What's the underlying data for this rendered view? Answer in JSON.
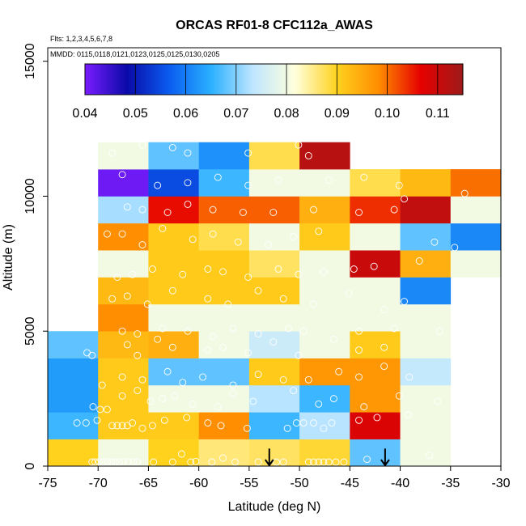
{
  "chart_data": {
    "type": "heatmap",
    "title": "ORCAS RF01-8 CFC112a_AWAS",
    "subtitle_flights": "Flts: 1,2,3,4,5,6,7,8",
    "subtitle_dates": "MMDD: 0115,0118,0121,0123,0125,0125,0130,0205",
    "xlabel": "Latitude (deg N)",
    "ylabel": "Altitude (m)",
    "xlim": [
      -75,
      -30
    ],
    "ylim": [
      0,
      15500
    ],
    "x_ticks": [
      -75,
      -70,
      -65,
      -60,
      -55,
      -50,
      -45,
      -40,
      -35,
      -30
    ],
    "x_tick_labels": [
      "-75",
      "-70",
      "-65",
      "-60",
      "-55",
      "-50",
      "-45",
      "-40",
      "-35",
      "-30"
    ],
    "y_ticks": [
      0,
      5000,
      10000,
      15000
    ],
    "y_tick_labels": [
      "0",
      "5000",
      "10000",
      "15000"
    ],
    "colorbar": {
      "min": 0.04,
      "max": 0.115,
      "ticks": [
        0.04,
        0.05,
        0.06,
        0.07,
        0.08,
        0.09,
        0.1,
        0.11
      ],
      "tick_labels": [
        "0.04",
        "0.05",
        "0.06",
        "0.07",
        "0.08",
        "0.09",
        "0.10",
        "0.11"
      ],
      "stops": [
        "#7a1cff",
        "#0a0aa8",
        "#0a5cf0",
        "#2ab0ff",
        "#bfe6ff",
        "#ffffdc",
        "#ffd21e",
        "#ff8c00",
        "#e60000",
        "#9e1a1a"
      ]
    },
    "lat_edges": [
      -75,
      -70,
      -65,
      -60,
      -55,
      -50,
      -45,
      -40,
      -35,
      -30
    ],
    "alt_edges": [
      0,
      1000,
      2000,
      3000,
      4000,
      5000,
      6000,
      7000,
      8000,
      9000,
      10000,
      11000,
      12000
    ],
    "cells_value_note": "rows bottom(0-1000 m) to top(11000-12000 m); columns lat bins -75..-30; null = no data",
    "cells": [
      [
        0.09,
        0.08,
        0.09,
        0.086,
        0.087,
        0.089,
        0.068,
        0.08,
        null
      ],
      [
        0.066,
        0.091,
        0.091,
        0.098,
        0.066,
        0.073,
        0.108,
        0.08,
        null
      ],
      [
        0.063,
        0.091,
        0.08,
        0.08,
        0.073,
        0.066,
        0.097,
        0.08,
        null
      ],
      [
        0.063,
        0.091,
        0.068,
        0.068,
        0.091,
        0.097,
        0.097,
        0.074,
        null
      ],
      [
        0.068,
        0.093,
        0.094,
        0.08,
        0.075,
        0.08,
        0.091,
        0.08,
        null
      ],
      [
        null,
        0.098,
        0.08,
        0.08,
        0.08,
        0.08,
        0.08,
        0.08,
        null
      ],
      [
        null,
        0.093,
        0.091,
        0.091,
        0.091,
        0.08,
        0.08,
        0.061,
        null
      ],
      [
        null,
        0.08,
        0.091,
        0.091,
        0.087,
        0.08,
        0.11,
        0.094,
        0.08
      ],
      [
        null,
        0.098,
        0.091,
        0.088,
        0.08,
        0.091,
        0.08,
        0.068,
        0.061
      ],
      [
        null,
        0.072,
        0.106,
        0.101,
        0.101,
        0.094,
        0.104,
        0.111,
        0.08
      ],
      [
        null,
        0.041,
        0.055,
        0.066,
        0.08,
        0.08,
        0.088,
        0.093,
        0.1
      ],
      [
        null,
        0.08,
        0.068,
        0.062,
        0.088,
        0.112,
        null,
        null,
        null
      ]
    ],
    "obs_points": [
      [
        -70.6,
        150
      ],
      [
        -70.3,
        150
      ],
      [
        -69.9,
        160
      ],
      [
        -69.5,
        140
      ],
      [
        -69.1,
        160
      ],
      [
        -68.7,
        150
      ],
      [
        -68.3,
        150
      ],
      [
        -67.9,
        140
      ],
      [
        -67.5,
        160
      ],
      [
        -67.0,
        150
      ],
      [
        -66.5,
        150
      ],
      [
        -66.1,
        150
      ],
      [
        -64.5,
        150
      ],
      [
        -62.6,
        150
      ],
      [
        -61.7,
        450
      ],
      [
        -60.8,
        150
      ],
      [
        -60.3,
        170
      ],
      [
        -58.7,
        150
      ],
      [
        -57.6,
        300
      ],
      [
        -56.4,
        150
      ],
      [
        -54.1,
        150
      ],
      [
        -52.3,
        150
      ],
      [
        -51.6,
        150
      ],
      [
        -49.1,
        150
      ],
      [
        -48.6,
        150
      ],
      [
        -48.1,
        150
      ],
      [
        -47.6,
        150
      ],
      [
        -47.1,
        150
      ],
      [
        -46.4,
        150
      ],
      [
        -45.6,
        150
      ],
      [
        -43.3,
        250
      ],
      [
        -37.1,
        400
      ],
      [
        -72.1,
        1600
      ],
      [
        -71.2,
        1600
      ],
      [
        -70.1,
        1700
      ],
      [
        -69.1,
        2100
      ],
      [
        -68.6,
        1500
      ],
      [
        -68.1,
        1500
      ],
      [
        -67.6,
        1500
      ],
      [
        -67.1,
        1500
      ],
      [
        -66.6,
        1600
      ],
      [
        -65.6,
        1400
      ],
      [
        -64.6,
        1500
      ],
      [
        -63.4,
        1700
      ],
      [
        -61.2,
        1800
      ],
      [
        -59.1,
        1600
      ],
      [
        -57.8,
        1500
      ],
      [
        -55.2,
        1400
      ],
      [
        -51.2,
        1400
      ],
      [
        -50.3,
        1600
      ],
      [
        -49.6,
        1600
      ],
      [
        -48.6,
        1600
      ],
      [
        -47.6,
        1400
      ],
      [
        -46.8,
        1600
      ],
      [
        -44.1,
        1700
      ],
      [
        -42.3,
        1800
      ],
      [
        -39.2,
        1900
      ],
      [
        -70.5,
        2200
      ],
      [
        -69.8,
        2100
      ],
      [
        -67.6,
        2600
      ],
      [
        -66.1,
        2800
      ],
      [
        -64.8,
        2400
      ],
      [
        -63.6,
        2500
      ],
      [
        -62.4,
        2600
      ],
      [
        -60.6,
        2300
      ],
      [
        -58.1,
        2200
      ],
      [
        -56.6,
        2700
      ],
      [
        -54.6,
        2400
      ],
      [
        -50.6,
        2800
      ],
      [
        -48.1,
        2300
      ],
      [
        -46.6,
        2500
      ],
      [
        -43.6,
        2200
      ],
      [
        -40.1,
        2600
      ],
      [
        -36.3,
        2400
      ],
      [
        -69.6,
        3000
      ],
      [
        -67.6,
        3300
      ],
      [
        -65.6,
        3200
      ],
      [
        -63.1,
        3500
      ],
      [
        -61.6,
        3100
      ],
      [
        -59.6,
        3300
      ],
      [
        -56.6,
        3000
      ],
      [
        -54.1,
        3400
      ],
      [
        -51.6,
        3200
      ],
      [
        -49.1,
        3200
      ],
      [
        -46.1,
        3500
      ],
      [
        -44.1,
        3300
      ],
      [
        -41.6,
        3700
      ],
      [
        -39.1,
        3300
      ],
      [
        -71.1,
        4200
      ],
      [
        -70.6,
        4100
      ],
      [
        -67.1,
        4500
      ],
      [
        -66.1,
        4100
      ],
      [
        -64.1,
        4700
      ],
      [
        -62.6,
        4400
      ],
      [
        -59.1,
        4300
      ],
      [
        -57.6,
        4400
      ],
      [
        -55.1,
        4200
      ],
      [
        -52.6,
        4600
      ],
      [
        -50.1,
        4100
      ],
      [
        -46.6,
        4700
      ],
      [
        -44.1,
        4300
      ],
      [
        -41.6,
        4400
      ],
      [
        -67.6,
        5000
      ],
      [
        -66.1,
        4900
      ],
      [
        -63.6,
        5100
      ],
      [
        -61.1,
        5000
      ],
      [
        -58.6,
        4800
      ],
      [
        -56.6,
        5100
      ],
      [
        -54.1,
        4900
      ],
      [
        -51.1,
        5100
      ],
      [
        -49.6,
        5000
      ],
      [
        -44.1,
        5000
      ],
      [
        -40.6,
        5100
      ],
      [
        -36.1,
        5000
      ],
      [
        -68.6,
        6200
      ],
      [
        -67.1,
        6300
      ],
      [
        -65.1,
        6000
      ],
      [
        -62.6,
        6500
      ],
      [
        -59.1,
        6200
      ],
      [
        -57.1,
        6000
      ],
      [
        -54.1,
        6500
      ],
      [
        -51.6,
        6200
      ],
      [
        -48.6,
        6000
      ],
      [
        -45.1,
        6400
      ],
      [
        -41.6,
        5800
      ],
      [
        -39.6,
        6100
      ],
      [
        -68.1,
        7000
      ],
      [
        -66.6,
        7100
      ],
      [
        -64.6,
        7300
      ],
      [
        -61.6,
        7100
      ],
      [
        -59.1,
        7300
      ],
      [
        -57.6,
        7200
      ],
      [
        -55.1,
        7000
      ],
      [
        -52.1,
        7300
      ],
      [
        -50.1,
        7100
      ],
      [
        -47.6,
        7200
      ],
      [
        -44.6,
        7300
      ],
      [
        -42.6,
        7400
      ],
      [
        -38.1,
        7600
      ],
      [
        -69.1,
        8600
      ],
      [
        -67.6,
        8600
      ],
      [
        -65.6,
        8200
      ],
      [
        -63.6,
        8800
      ],
      [
        -60.6,
        8400
      ],
      [
        -58.6,
        8600
      ],
      [
        -56.1,
        8300
      ],
      [
        -53.1,
        8200
      ],
      [
        -50.6,
        8500
      ],
      [
        -48.1,
        8700
      ],
      [
        -36.6,
        8300
      ],
      [
        -34.6,
        8100
      ],
      [
        -67.1,
        9600
      ],
      [
        -65.6,
        9500
      ],
      [
        -63.1,
        9400
      ],
      [
        -61.1,
        9700
      ],
      [
        -58.6,
        9500
      ],
      [
        -55.6,
        9400
      ],
      [
        -52.6,
        9400
      ],
      [
        -48.6,
        9500
      ],
      [
        -44.1,
        9400
      ],
      [
        -40.6,
        9500
      ],
      [
        -39.6,
        9900
      ],
      [
        -67.6,
        10800
      ],
      [
        -64.1,
        10400
      ],
      [
        -61.1,
        10500
      ],
      [
        -58.1,
        10700
      ],
      [
        -55.1,
        10400
      ],
      [
        -52.1,
        10600
      ],
      [
        -47.1,
        10600
      ],
      [
        -43.6,
        10700
      ],
      [
        -40.1,
        10400
      ],
      [
        -33.6,
        10100
      ],
      [
        -68.6,
        11600
      ],
      [
        -65.6,
        11900
      ],
      [
        -62.6,
        11800
      ],
      [
        -61.1,
        11600
      ],
      [
        -55.1,
        11600
      ],
      [
        -50.1,
        11900
      ],
      [
        -49.1,
        11500
      ]
    ],
    "markers": [
      {
        "type": "down-arrow",
        "lat": -53,
        "alt_top": 650,
        "alt_bottom": 0
      },
      {
        "type": "down-arrow",
        "lat": -41.5,
        "alt_top": 650,
        "alt_bottom": 0
      }
    ]
  }
}
